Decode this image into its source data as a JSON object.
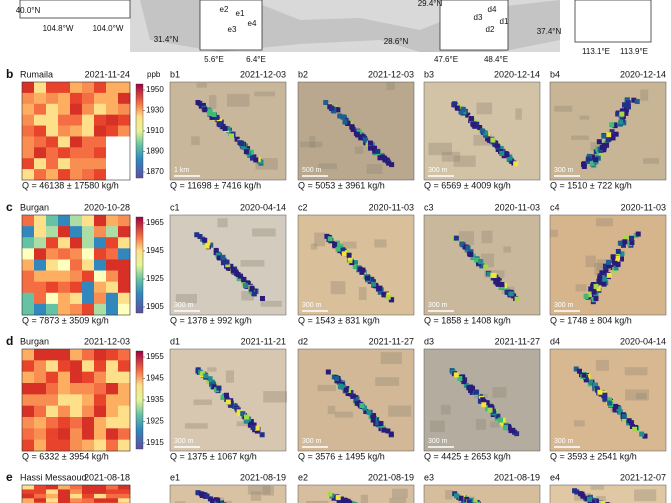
{
  "top": {
    "labels": [
      "29.4°N",
      "40.0°N",
      "104.8°W",
      "104.0°W",
      "31.4°N",
      "5.6°E",
      "6.4°E",
      "e2",
      "e1",
      "e3",
      "e4",
      "28.6°N",
      "47.6°E",
      "48.4°E",
      "d3",
      "d4",
      "d1",
      "d2",
      "37.4°N",
      "113.1°E",
      "113.9°E"
    ]
  },
  "unit": "ppb",
  "rows": [
    {
      "letter": "b",
      "site": "Rumaila",
      "date": "2021-11-24",
      "colorbar_ticks": [
        "1950",
        "1930",
        "1910",
        "1890",
        "1870"
      ],
      "q": "Q = 46138 ± 17580 kg/h",
      "panels": [
        {
          "id": "b1",
          "date": "2021-12-03",
          "q": "Q = 11698 ± 7416 kg/h",
          "scale": "1 km"
        },
        {
          "id": "b2",
          "date": "2021-12-03",
          "q": "Q = 5053 ± 3961 kg/h",
          "scale": "500 m"
        },
        {
          "id": "b3",
          "date": "2020-12-14",
          "q": "Q = 6569 ± 4009 kg/h",
          "scale": "300 m"
        },
        {
          "id": "b4",
          "date": "2020-12-14",
          "q": "Q = 1510 ± 722 kg/h",
          "scale": "300 m"
        }
      ]
    },
    {
      "letter": "c",
      "site": "Burgan",
      "date": "2020-10-28",
      "colorbar_ticks": [
        "1965",
        "1945",
        "1925",
        "1905"
      ],
      "q": "Q = 7873 ± 3509 kg/h",
      "panels": [
        {
          "id": "c1",
          "date": "2020-04-14",
          "q": "Q = 1378 ± 992 kg/h",
          "scale": "300 m"
        },
        {
          "id": "c2",
          "date": "2020-11-03",
          "q": "Q = 1543 ± 831 kg/h",
          "scale": "300 m"
        },
        {
          "id": "c3",
          "date": "2020-11-03",
          "q": "Q = 1858 ± 1408 kg/h",
          "scale": "300 m"
        },
        {
          "id": "c4",
          "date": "2020-11-03",
          "q": "Q = 1748 ± 804 kg/h",
          "scale": "300 m"
        }
      ]
    },
    {
      "letter": "d",
      "site": "Burgan",
      "date": "2021-12-03",
      "colorbar_ticks": [
        "1955",
        "1945",
        "1935",
        "1925",
        "1915"
      ],
      "q": "Q = 6332 ± 3954 kg/h",
      "panels": [
        {
          "id": "d1",
          "date": "2021-11-21",
          "q": "Q = 1375 ± 1067 kg/h",
          "scale": "300 m"
        },
        {
          "id": "d2",
          "date": "2021-11-27",
          "q": "Q = 3576 ± 1495 kg/h",
          "scale": "300 m"
        },
        {
          "id": "d3",
          "date": "2021-11-27",
          "q": "Q = 4425 ± 2653 kg/h",
          "scale": "300 m"
        },
        {
          "id": "d4",
          "date": "2020-04-14",
          "q": "Q = 3593 ± 2541 kg/h",
          "scale": "300 m"
        }
      ]
    },
    {
      "letter": "e",
      "site": "Hassi Messaoud",
      "date": "2021-08-18",
      "panels": [
        {
          "id": "e1",
          "date": "2021-08-19"
        },
        {
          "id": "e2",
          "date": "2021-08-19"
        },
        {
          "id": "e3",
          "date": "2021-08-19"
        },
        {
          "id": "e4",
          "date": "2021-12-07"
        }
      ]
    }
  ]
}
